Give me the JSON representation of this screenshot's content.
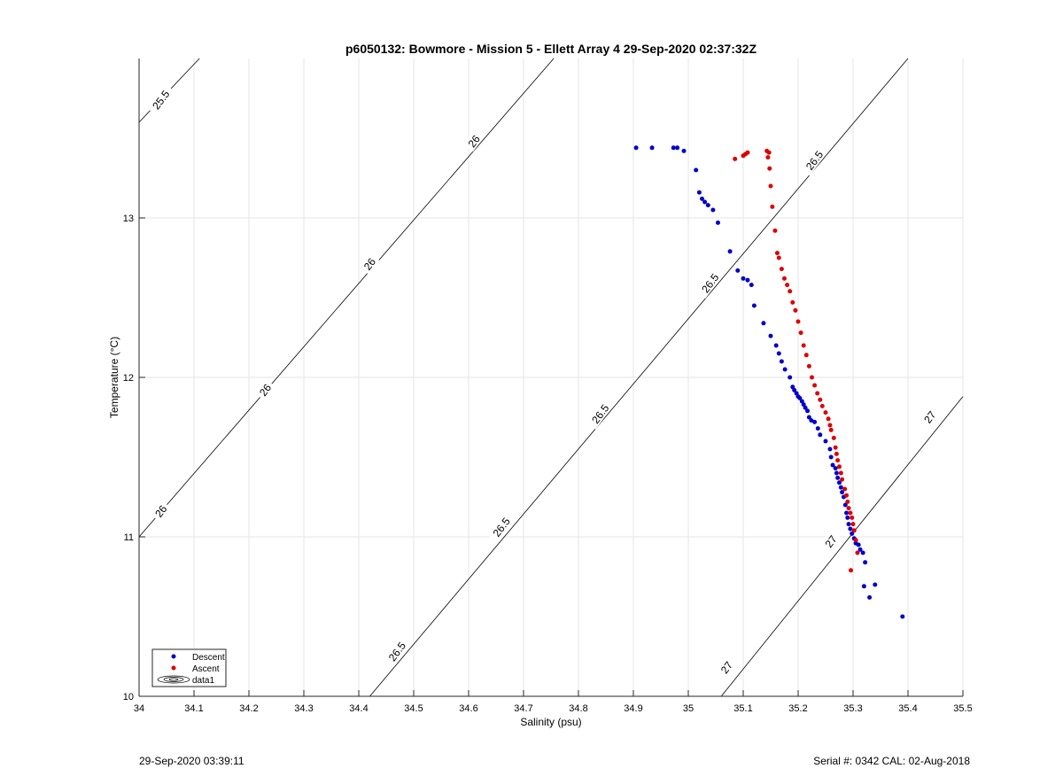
{
  "chart_data": {
    "type": "scatter",
    "title": "p6050132: Bowmore - Mission 5 - Ellett Array 4 29-Sep-2020 02:37:32Z",
    "xlabel": "Salinity (psu)",
    "ylabel": "Temperature (°C)",
    "xlim": [
      34,
      35.5
    ],
    "ylim": [
      10,
      14
    ],
    "xticks": [
      "34",
      "34.1",
      "34.2",
      "34.3",
      "34.4",
      "34.5",
      "34.6",
      "34.7",
      "34.8",
      "34.9",
      "35",
      "35.1",
      "35.2",
      "35.3",
      "35.4",
      "35.5"
    ],
    "yticks": [
      "10",
      "11",
      "12",
      "13"
    ],
    "grid": true,
    "legend_position": "bottom-left",
    "legend": [
      "Descent",
      "Ascent",
      "data1"
    ],
    "colors": {
      "descent": "#0000cc",
      "ascent": "#dd0000",
      "contour": "#000000"
    },
    "contour_labels": [
      {
        "text": "25.5",
        "x": 34.04,
        "y": 13.74
      },
      {
        "text": "26",
        "x": 34.61,
        "y": 13.48
      },
      {
        "text": "26",
        "x": 34.42,
        "y": 12.71
      },
      {
        "text": "26",
        "x": 34.23,
        "y": 11.92
      },
      {
        "text": "26",
        "x": 34.04,
        "y": 11.16
      },
      {
        "text": "26.5",
        "x": 35.23,
        "y": 13.36
      },
      {
        "text": "26.5",
        "x": 35.04,
        "y": 12.59
      },
      {
        "text": "26.5",
        "x": 34.84,
        "y": 11.77
      },
      {
        "text": "26.5",
        "x": 34.66,
        "y": 11.06
      },
      {
        "text": "26.5",
        "x": 34.47,
        "y": 10.28
      },
      {
        "text": "27",
        "x": 35.44,
        "y": 11.75
      },
      {
        "text": "27",
        "x": 35.26,
        "y": 10.97
      },
      {
        "text": "27",
        "x": 35.07,
        "y": 10.18
      }
    ],
    "contour_lines": [
      {
        "sigma": "25.5",
        "x": [
          34.0,
          34.11
        ],
        "y": [
          13.6,
          14.0
        ]
      },
      {
        "sigma": "26",
        "x": [
          34.0,
          34.755
        ],
        "y": [
          11.0,
          14.0
        ]
      },
      {
        "sigma": "26.5",
        "x": [
          34.42,
          35.4
        ],
        "y": [
          10.0,
          14.0
        ]
      },
      {
        "sigma": "27",
        "x": [
          35.06,
          35.5
        ],
        "y": [
          10.0,
          11.88
        ]
      }
    ],
    "series": [
      {
        "name": "Descent",
        "x": [
          34.905,
          34.934,
          34.973,
          34.98,
          34.992,
          35.014,
          35.02,
          35.025,
          35.03,
          35.036,
          35.045,
          35.054,
          35.076,
          35.09,
          35.1,
          35.108,
          35.115,
          35.12,
          35.137,
          35.15,
          35.16,
          35.165,
          35.17,
          35.176,
          35.185,
          35.19,
          35.193,
          35.197,
          35.2,
          35.203,
          35.207,
          35.21,
          35.213,
          35.217,
          35.22,
          35.224,
          35.23,
          35.236,
          35.24,
          35.25,
          35.258,
          35.26,
          35.263,
          35.268,
          35.27,
          35.272,
          35.275,
          35.278,
          35.28,
          35.283,
          35.286,
          35.288,
          35.29,
          35.292,
          35.295,
          35.298,
          35.302,
          35.305,
          35.31,
          35.313,
          35.318,
          35.322,
          35.32,
          35.33,
          35.34,
          35.39
        ],
        "y": [
          13.44,
          13.44,
          13.44,
          13.44,
          13.42,
          13.3,
          13.16,
          13.12,
          13.1,
          13.08,
          13.05,
          12.97,
          12.79,
          12.67,
          12.62,
          12.61,
          12.58,
          12.45,
          12.34,
          12.26,
          12.2,
          12.15,
          12.1,
          12.05,
          12.0,
          11.94,
          11.92,
          11.9,
          11.88,
          11.87,
          11.85,
          11.83,
          11.81,
          11.79,
          11.75,
          11.73,
          11.72,
          11.68,
          11.64,
          11.6,
          11.55,
          11.5,
          11.45,
          11.43,
          11.4,
          11.37,
          11.34,
          11.31,
          11.28,
          11.25,
          11.2,
          11.15,
          11.12,
          11.08,
          11.05,
          11.02,
          10.99,
          10.96,
          10.95,
          10.92,
          10.9,
          10.84,
          10.69,
          10.62,
          10.7,
          10.5
        ]
      },
      {
        "name": "Ascent",
        "x": [
          35.085,
          35.1,
          35.104,
          35.108,
          35.143,
          35.147,
          35.145,
          35.148,
          35.15,
          35.153,
          35.158,
          35.162,
          35.165,
          35.17,
          35.175,
          35.18,
          35.185,
          35.19,
          35.195,
          35.2,
          35.205,
          35.21,
          35.215,
          35.22,
          35.225,
          35.23,
          35.235,
          35.24,
          35.244,
          35.25,
          35.255,
          35.258,
          35.26,
          35.265,
          35.268,
          35.27,
          35.272,
          35.275,
          35.278,
          35.28,
          35.285,
          35.288,
          35.29,
          35.292,
          35.295,
          35.298,
          35.3,
          35.302,
          35.305,
          35.308,
          35.296
        ],
        "y": [
          13.37,
          13.39,
          13.4,
          13.41,
          13.42,
          13.41,
          13.38,
          13.31,
          13.2,
          13.07,
          12.92,
          12.78,
          12.75,
          12.68,
          12.62,
          12.58,
          12.54,
          12.47,
          12.42,
          12.35,
          12.28,
          12.2,
          12.14,
          12.07,
          12.0,
          11.95,
          11.9,
          11.86,
          11.82,
          11.78,
          11.74,
          11.7,
          11.67,
          11.62,
          11.56,
          11.52,
          11.48,
          11.44,
          11.4,
          11.36,
          11.3,
          11.26,
          11.22,
          11.18,
          11.15,
          11.12,
          11.08,
          11.04,
          10.98,
          10.9,
          10.79
        ]
      }
    ]
  },
  "footer": {
    "timestamp": "29-Sep-2020 03:39:11",
    "serial": "Serial #: 0342  CAL: 02-Aug-2018"
  }
}
